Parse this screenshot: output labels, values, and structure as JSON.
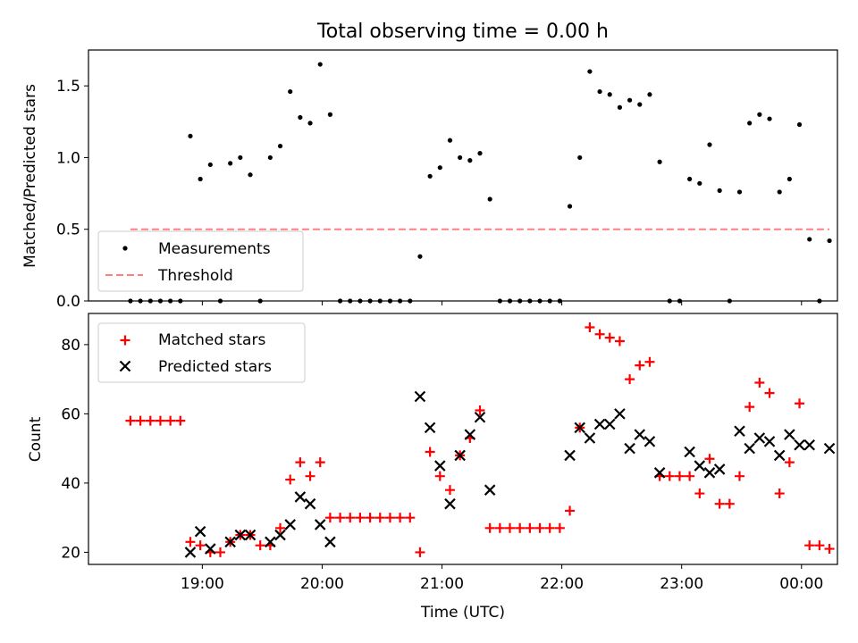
{
  "title": "Total observing time = 0.00 h",
  "colors": {
    "measurements": "#000000",
    "threshold": "#ff7f7f",
    "matched": "#ff0000",
    "predicted": "#000000",
    "frame": "#000000",
    "legend_border": "#cccccc"
  },
  "chart_data": [
    {
      "type": "scatter",
      "ylabel": "Matched/Predicted stars",
      "ylim": [
        0,
        1.75
      ],
      "y_ticks": [
        "0.0",
        "0.5",
        "1.0",
        "1.5"
      ],
      "y_tick_values": [
        0,
        0.5,
        1.0,
        1.5
      ],
      "xlim": [
        "18:03",
        "00:18"
      ],
      "x_tick_values": [
        "19:00",
        "20:00",
        "21:00",
        "22:00",
        "23:00",
        "00:00"
      ],
      "show_x_tick_labels": false,
      "legend_position": "lower-left",
      "grid": false,
      "series": [
        {
          "name": "Measurements",
          "marker": "dot",
          "points": [
            [
              "18:24",
              0.0
            ],
            [
              "18:29",
              0.0
            ],
            [
              "18:34",
              0.0
            ],
            [
              "18:39",
              0.0
            ],
            [
              "18:44",
              0.0
            ],
            [
              "18:49",
              0.0
            ],
            [
              "18:54",
              1.15
            ],
            [
              "18:59",
              0.85
            ],
            [
              "19:04",
              0.95
            ],
            [
              "19:09",
              0.0
            ],
            [
              "19:14",
              0.96
            ],
            [
              "19:19",
              1.0
            ],
            [
              "19:24",
              0.88
            ],
            [
              "19:29",
              0.0
            ],
            [
              "19:34",
              1.0
            ],
            [
              "19:39",
              1.08
            ],
            [
              "19:44",
              1.46
            ],
            [
              "19:49",
              1.28
            ],
            [
              "19:54",
              1.24
            ],
            [
              "19:59",
              1.65
            ],
            [
              "20:04",
              1.3
            ],
            [
              "20:09",
              0.0
            ],
            [
              "20:14",
              0.0
            ],
            [
              "20:19",
              0.0
            ],
            [
              "20:24",
              0.0
            ],
            [
              "20:29",
              0.0
            ],
            [
              "20:34",
              0.0
            ],
            [
              "20:39",
              0.0
            ],
            [
              "20:44",
              0.0
            ],
            [
              "20:49",
              0.31
            ],
            [
              "20:54",
              0.87
            ],
            [
              "20:59",
              0.93
            ],
            [
              "21:04",
              1.12
            ],
            [
              "21:09",
              1.0
            ],
            [
              "21:14",
              0.98
            ],
            [
              "21:19",
              1.03
            ],
            [
              "21:24",
              0.71
            ],
            [
              "21:29",
              0.0
            ],
            [
              "21:34",
              0.0
            ],
            [
              "21:39",
              0.0
            ],
            [
              "21:44",
              0.0
            ],
            [
              "21:49",
              0.0
            ],
            [
              "21:54",
              0.0
            ],
            [
              "21:59",
              0.0
            ],
            [
              "22:04",
              0.66
            ],
            [
              "22:09",
              1.0
            ],
            [
              "22:14",
              1.6
            ],
            [
              "22:19",
              1.46
            ],
            [
              "22:24",
              1.44
            ],
            [
              "22:29",
              1.35
            ],
            [
              "22:34",
              1.4
            ],
            [
              "22:39",
              1.37
            ],
            [
              "22:44",
              1.44
            ],
            [
              "22:49",
              0.97
            ],
            [
              "22:54",
              0.0
            ],
            [
              "22:59",
              0.0
            ],
            [
              "23:04",
              0.85
            ],
            [
              "23:09",
              0.82
            ],
            [
              "23:14",
              1.09
            ],
            [
              "23:19",
              0.77
            ],
            [
              "23:24",
              0.0
            ],
            [
              "23:29",
              0.76
            ],
            [
              "23:34",
              1.24
            ],
            [
              "23:39",
              1.3
            ],
            [
              "23:44",
              1.27
            ],
            [
              "23:49",
              0.76
            ],
            [
              "23:54",
              0.85
            ],
            [
              "23:59",
              1.23
            ],
            [
              "00:04",
              0.43
            ],
            [
              "00:09",
              0.0
            ],
            [
              "00:14",
              0.42
            ]
          ]
        },
        {
          "name": "Threshold",
          "style": "dashed",
          "x": [
            "18:24",
            "00:14"
          ],
          "y": [
            0.5,
            0.5
          ]
        }
      ]
    },
    {
      "type": "scatter",
      "ylabel": "Count",
      "xlabel": "Time (UTC)",
      "ylim": [
        16.5,
        89
      ],
      "y_ticks": [
        "20",
        "40",
        "60",
        "80"
      ],
      "y_tick_values": [
        20,
        40,
        60,
        80
      ],
      "xlim": [
        "18:03",
        "00:18"
      ],
      "x_ticks": [
        "19:00",
        "20:00",
        "21:00",
        "22:00",
        "23:00",
        "00:00"
      ],
      "x_tick_values": [
        "19:00",
        "20:00",
        "21:00",
        "22:00",
        "23:00",
        "00:00"
      ],
      "show_x_tick_labels": true,
      "legend_position": "upper-left",
      "grid": false,
      "series": [
        {
          "name": "Matched stars",
          "marker": "plus",
          "points": [
            [
              "18:24",
              58
            ],
            [
              "18:29",
              58
            ],
            [
              "18:34",
              58
            ],
            [
              "18:39",
              58
            ],
            [
              "18:44",
              58
            ],
            [
              "18:49",
              58
            ],
            [
              "18:54",
              23
            ],
            [
              "18:59",
              22
            ],
            [
              "19:04",
              20
            ],
            [
              "19:09",
              20
            ],
            [
              "19:14",
              23
            ],
            [
              "19:19",
              25
            ],
            [
              "19:24",
              25
            ],
            [
              "19:29",
              22
            ],
            [
              "19:34",
              22
            ],
            [
              "19:39",
              27
            ],
            [
              "19:44",
              41
            ],
            [
              "19:49",
              46
            ],
            [
              "19:54",
              42
            ],
            [
              "19:59",
              46
            ],
            [
              "20:04",
              30
            ],
            [
              "20:09",
              30
            ],
            [
              "20:14",
              30
            ],
            [
              "20:19",
              30
            ],
            [
              "20:24",
              30
            ],
            [
              "20:29",
              30
            ],
            [
              "20:34",
              30
            ],
            [
              "20:39",
              30
            ],
            [
              "20:44",
              30
            ],
            [
              "20:49",
              20
            ],
            [
              "20:54",
              49
            ],
            [
              "20:59",
              42
            ],
            [
              "21:04",
              38
            ],
            [
              "21:09",
              48
            ],
            [
              "21:14",
              53
            ],
            [
              "21:19",
              61
            ],
            [
              "21:24",
              27
            ],
            [
              "21:29",
              27
            ],
            [
              "21:34",
              27
            ],
            [
              "21:39",
              27
            ],
            [
              "21:44",
              27
            ],
            [
              "21:49",
              27
            ],
            [
              "21:54",
              27
            ],
            [
              "21:59",
              27
            ],
            [
              "22:04",
              32
            ],
            [
              "22:09",
              56
            ],
            [
              "22:14",
              85
            ],
            [
              "22:19",
              83
            ],
            [
              "22:24",
              82
            ],
            [
              "22:29",
              81
            ],
            [
              "22:34",
              70
            ],
            [
              "22:39",
              74
            ],
            [
              "22:44",
              75
            ],
            [
              "22:49",
              42
            ],
            [
              "22:54",
              42
            ],
            [
              "22:59",
              42
            ],
            [
              "23:04",
              42
            ],
            [
              "23:09",
              37
            ],
            [
              "23:14",
              47
            ],
            [
              "23:19",
              34
            ],
            [
              "23:24",
              34
            ],
            [
              "23:29",
              42
            ],
            [
              "23:34",
              62
            ],
            [
              "23:39",
              69
            ],
            [
              "23:44",
              66
            ],
            [
              "23:49",
              37
            ],
            [
              "23:54",
              46
            ],
            [
              "23:59",
              63
            ],
            [
              "00:04",
              22
            ],
            [
              "00:09",
              22
            ],
            [
              "00:14",
              21
            ]
          ]
        },
        {
          "name": "Predicted stars",
          "marker": "x",
          "points": [
            [
              "18:54",
              20
            ],
            [
              "18:59",
              26
            ],
            [
              "19:04",
              21
            ],
            [
              "19:14",
              23
            ],
            [
              "19:19",
              25
            ],
            [
              "19:24",
              25
            ],
            [
              "19:34",
              23
            ],
            [
              "19:39",
              25
            ],
            [
              "19:44",
              28
            ],
            [
              "19:49",
              36
            ],
            [
              "19:54",
              34
            ],
            [
              "19:59",
              28
            ],
            [
              "20:04",
              23
            ],
            [
              "20:49",
              65
            ],
            [
              "20:54",
              56
            ],
            [
              "20:59",
              45
            ],
            [
              "21:04",
              34
            ],
            [
              "21:09",
              48
            ],
            [
              "21:14",
              54
            ],
            [
              "21:19",
              59
            ],
            [
              "21:24",
              38
            ],
            [
              "22:04",
              48
            ],
            [
              "22:09",
              56
            ],
            [
              "22:14",
              53
            ],
            [
              "22:19",
              57
            ],
            [
              "22:24",
              57
            ],
            [
              "22:29",
              60
            ],
            [
              "22:34",
              50
            ],
            [
              "22:39",
              54
            ],
            [
              "22:44",
              52
            ],
            [
              "22:49",
              43
            ],
            [
              "23:04",
              49
            ],
            [
              "23:09",
              45
            ],
            [
              "23:14",
              43
            ],
            [
              "23:19",
              44
            ],
            [
              "23:29",
              55
            ],
            [
              "23:34",
              50
            ],
            [
              "23:39",
              53
            ],
            [
              "23:44",
              52
            ],
            [
              "23:49",
              48
            ],
            [
              "23:54",
              54
            ],
            [
              "23:59",
              51
            ],
            [
              "00:04",
              51
            ],
            [
              "00:14",
              50
            ]
          ]
        }
      ]
    }
  ]
}
